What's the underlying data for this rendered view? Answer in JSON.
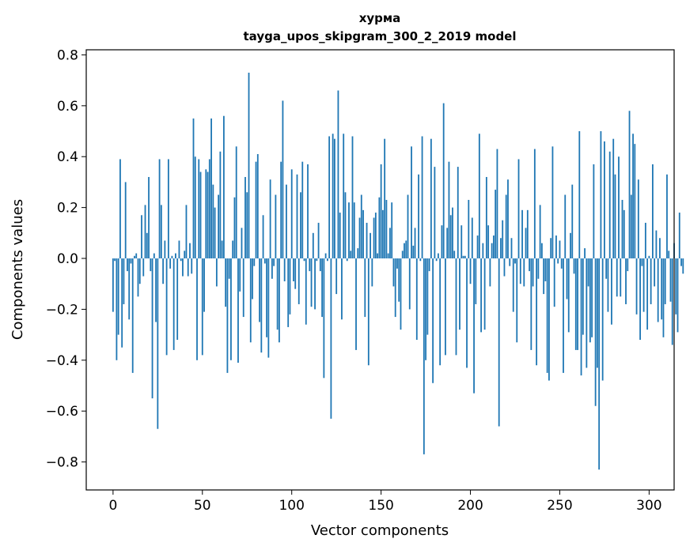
{
  "chart_data": {
    "type": "bar",
    "title": "хурма",
    "subtitle": "tayga_upos_skipgram_300_2_2019 model",
    "xlabel": "Vector components",
    "ylabel": "Components values",
    "xlim": [
      -15,
      314
    ],
    "ylim": [
      -0.91,
      0.82
    ],
    "xticks": [
      0,
      50,
      100,
      150,
      200,
      250,
      300
    ],
    "yticks": [
      -0.8,
      -0.6,
      -0.4,
      -0.2,
      0.0,
      0.2,
      0.4,
      0.6,
      0.8
    ],
    "ytick_labels": [
      "−0.8",
      "−0.6",
      "−0.4",
      "−0.2",
      "0.0",
      "0.2",
      "0.4",
      "0.6",
      "0.8"
    ],
    "bar_color": "#1f77b4",
    "grid": false,
    "values": [
      -0.21,
      -0.01,
      -0.4,
      -0.3,
      0.39,
      -0.35,
      -0.18,
      0.3,
      -0.05,
      -0.24,
      -0.02,
      -0.45,
      0.01,
      0.02,
      -0.15,
      -0.1,
      0.17,
      -0.07,
      0.21,
      0.1,
      0.32,
      -0.05,
      -0.55,
      0.02,
      -0.25,
      -0.67,
      0.39,
      0.21,
      -0.1,
      0.07,
      -0.38,
      0.39,
      -0.04,
      0.01,
      -0.36,
      0.02,
      -0.32,
      0.07,
      -0.01,
      -0.07,
      0.03,
      0.21,
      -0.07,
      0.06,
      -0.06,
      0.55,
      0.4,
      -0.4,
      0.39,
      0.34,
      -0.38,
      -0.21,
      0.35,
      0.34,
      0.39,
      0.55,
      0.29,
      0.2,
      -0.11,
      0.25,
      0.42,
      0.07,
      0.56,
      -0.19,
      -0.45,
      -0.08,
      -0.4,
      0.07,
      0.24,
      0.44,
      -0.41,
      -0.13,
      0.12,
      -0.23,
      0.32,
      0.26,
      0.73,
      -0.33,
      -0.16,
      -0.03,
      0.38,
      0.41,
      -0.25,
      -0.37,
      0.17,
      -0.02,
      -0.31,
      -0.39,
      0.31,
      -0.08,
      -0.03,
      0.25,
      -0.28,
      -0.33,
      0.38,
      0.62,
      -0.09,
      0.29,
      -0.27,
      -0.22,
      0.35,
      -0.09,
      -0.12,
      0.33,
      -0.18,
      0.26,
      0.38,
      -0.01,
      -0.26,
      0.37,
      -0.05,
      -0.19,
      0.1,
      -0.2,
      -0.01,
      0.14,
      -0.05,
      -0.23,
      -0.47,
      0.02,
      -0.01,
      0.48,
      -0.63,
      0.49,
      0.47,
      -0.14,
      0.66,
      0.18,
      -0.24,
      0.49,
      0.26,
      -0.01,
      0.22,
      0.03,
      0.48,
      0.22,
      -0.36,
      0.04,
      0.16,
      0.25,
      0.19,
      -0.23,
      0.14,
      -0.42,
      0.1,
      -0.11,
      0.16,
      0.18,
      0.02,
      0.24,
      0.37,
      0.19,
      0.47,
      0.23,
      0.02,
      0.12,
      0.22,
      -0.11,
      -0.23,
      -0.04,
      -0.17,
      -0.28,
      0.03,
      0.06,
      0.07,
      0.25,
      -0.2,
      0.44,
      0.05,
      0.12,
      -0.32,
      0.33,
      -0.01,
      0.48,
      -0.77,
      -0.4,
      -0.3,
      -0.05,
      0.47,
      -0.49,
      0.36,
      -0.01,
      0.02,
      -0.42,
      0.13,
      0.61,
      -0.38,
      0.12,
      0.38,
      0.17,
      0.2,
      0.03,
      -0.38,
      0.36,
      -0.28,
      0.13,
      0.01,
      0.01,
      -0.43,
      0.23,
      -0.1,
      0.16,
      -0.53,
      -0.18,
      0.09,
      0.49,
      -0.29,
      0.06,
      -0.28,
      0.32,
      0.13,
      -0.11,
      0.06,
      0.09,
      0.27,
      0.43,
      -0.66,
      0.08,
      0.15,
      -0.07,
      0.25,
      0.31,
      -0.03,
      0.08,
      -0.21,
      -0.02,
      -0.33,
      0.39,
      -0.1,
      0.19,
      -0.11,
      0.12,
      0.19,
      -0.05,
      -0.36,
      -0.11,
      0.43,
      -0.42,
      -0.08,
      0.21,
      0.06,
      -0.14,
      -0.09,
      -0.45,
      -0.48,
      0.08,
      0.44,
      -0.19,
      0.09,
      -0.02,
      0.07,
      -0.04,
      -0.45,
      0.25,
      -0.16,
      -0.29,
      0.1,
      0.29,
      -0.06,
      -0.36,
      -0.36,
      0.5,
      -0.46,
      -0.3,
      0.04,
      -0.43,
      -0.11,
      -0.33,
      -0.31,
      0.37,
      -0.58,
      -0.43,
      -0.83,
      0.5,
      -0.48,
      0.46,
      -0.08,
      -0.21,
      0.42,
      -0.26,
      0.47,
      0.33,
      -0.15,
      0.4,
      -0.15,
      0.23,
      0.19,
      -0.18,
      -0.05,
      0.58,
      0.25,
      0.49,
      0.45,
      -0.22,
      0.31,
      -0.32,
      -0.03,
      -0.21,
      0.14,
      -0.28,
      0.01,
      -0.18,
      0.37,
      -0.11,
      0.11,
      -0.25,
      0.08,
      -0.24,
      -0.31,
      -0.18,
      0.33,
      0.03,
      -0.17,
      -0.34,
      0.06,
      -0.22,
      -0.29,
      0.18,
      -0.03,
      -0.06
    ]
  }
}
